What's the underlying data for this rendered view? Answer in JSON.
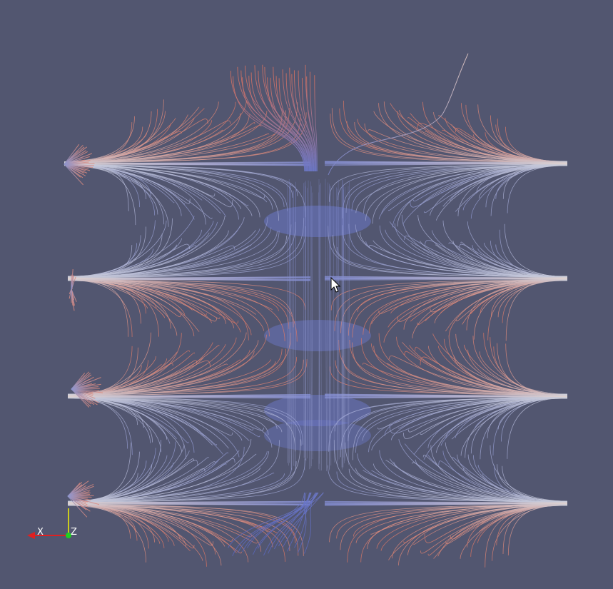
{
  "viewport": {
    "background": "#525670",
    "colormap": {
      "low": "#3b4cc0",
      "mid": "#dddddd",
      "high": "#e2674f"
    }
  },
  "orientation_axes": {
    "x_label": "X",
    "z_label": "Z",
    "x_color": "#e02020",
    "y_color": "#f2f200",
    "z_color": "#20d020"
  }
}
